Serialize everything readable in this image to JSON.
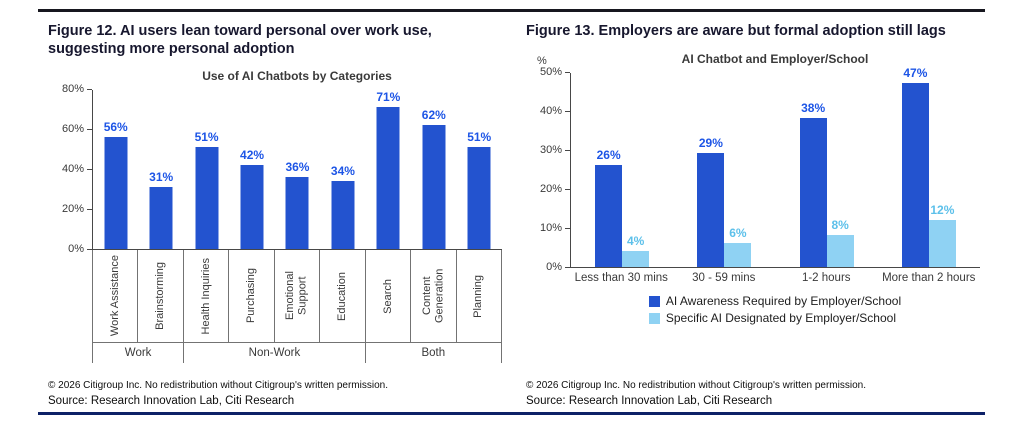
{
  "figures": {
    "fig12": {
      "heading": "Figure 12. AI users lean toward personal over work use, suggesting more personal adoption",
      "footer": {
        "copyright": "© 2026 Citigroup Inc. No redistribution without Citigroup's written permission.",
        "source": "Source: Research Innovation Lab, Citi Research"
      }
    },
    "fig13": {
      "heading": "Figure 13. Employers are aware but formal adoption still lags",
      "footer": {
        "copyright": "© 2026 Citigroup Inc. No redistribution without Citigroup's written permission.",
        "source": "Source: Research Innovation Lab, Citi Research"
      }
    }
  },
  "colors": {
    "bar_dark_blue": "#2353cf",
    "bar_light_blue": "#8fd2f3",
    "label_dark_blue": "#1d55e6",
    "label_light_blue": "#5cc0ea",
    "top_rule": "#17171f",
    "bottom_rule": "#0d2167"
  },
  "chart_data": [
    {
      "type": "bar",
      "title": "Use of AI Chatbots by Categories",
      "categories": [
        "Work Assistance",
        "Brainstorming",
        "Health Inquiries",
        "Purchasing",
        "Emotional Support",
        "Education",
        "Search",
        "Content Generation",
        "Planning"
      ],
      "values": [
        56,
        31,
        51,
        42,
        36,
        34,
        71,
        62,
        51
      ],
      "value_labels": [
        "56%",
        "31%",
        "51%",
        "42%",
        "36%",
        "34%",
        "71%",
        "62%",
        "51%"
      ],
      "group_labels": [
        {
          "label": "Work",
          "count": 2
        },
        {
          "label": "Non-Work",
          "count": 4
        },
        {
          "label": "Both",
          "count": 3
        }
      ],
      "xlabel": "",
      "ylabel": "",
      "ylim": [
        0,
        80
      ],
      "yticks": [
        0,
        20,
        40,
        60,
        80
      ],
      "ytick_labels": [
        "0%",
        "20%",
        "40%",
        "60%",
        "80%"
      ],
      "grid": false,
      "legend": "none"
    },
    {
      "type": "bar",
      "title": "AI Chatbot and Employer/School",
      "y_unit_label": "%",
      "categories": [
        "Less than 30 mins",
        "30 - 59 mins",
        "1-2 hours",
        "More than 2 hours"
      ],
      "series": [
        {
          "name": "AI Awareness Required by Employer/School",
          "values": [
            26,
            29,
            38,
            47
          ],
          "value_labels": [
            "26%",
            "29%",
            "38%",
            "47%"
          ],
          "color_key": "dark"
        },
        {
          "name": "Specific AI Designated by Employer/School",
          "values": [
            4,
            6,
            8,
            12
          ],
          "value_labels": [
            "4%",
            "6%",
            "8%",
            "12%"
          ],
          "color_key": "light"
        }
      ],
      "xlabel": "",
      "ylabel": "",
      "ylim": [
        0,
        50
      ],
      "yticks": [
        0,
        10,
        20,
        30,
        40,
        50
      ],
      "ytick_labels": [
        "0%",
        "10%",
        "20%",
        "30%",
        "40%",
        "50%"
      ],
      "grid": false,
      "legend_position": "bottom"
    }
  ]
}
